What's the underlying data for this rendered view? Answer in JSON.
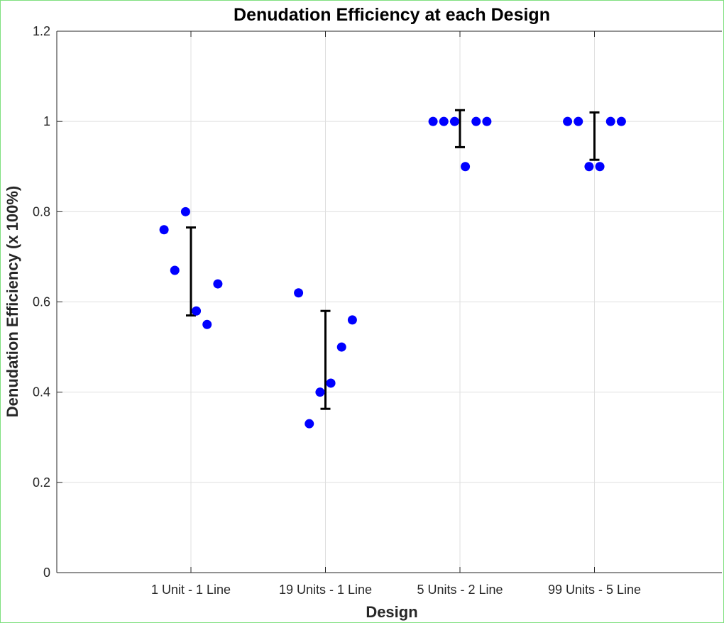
{
  "chart_data": {
    "type": "scatter",
    "title": "Denudation Efficiency at each Design",
    "xlabel": "Design",
    "ylabel": "Denudation Efficiency (x 100%)",
    "categories": [
      "1 Unit - 1 Line",
      "19 Units - 1 Line",
      "5 Units - 2 Line",
      "99 Units - 5 Line"
    ],
    "ylim": [
      0,
      1.2
    ],
    "yticks": [
      0,
      0.2,
      0.4,
      0.6,
      0.8,
      1,
      1.2
    ],
    "ytick_labels": [
      "0",
      "0.2",
      "0.4",
      "0.6",
      "0.8",
      "1",
      "1.2"
    ],
    "grid": true,
    "point_color": "#0000ff",
    "errorbar_color": "#000000",
    "groups": [
      {
        "category": "1 Unit - 1 Line",
        "points": [
          {
            "offset": -0.2,
            "y": 0.76
          },
          {
            "offset": -0.12,
            "y": 0.67
          },
          {
            "offset": -0.04,
            "y": 0.8
          },
          {
            "offset": 0.04,
            "y": 0.58
          },
          {
            "offset": 0.12,
            "y": 0.55
          },
          {
            "offset": 0.2,
            "y": 0.64
          }
        ],
        "errorbar": {
          "low": 0.57,
          "high": 0.765
        }
      },
      {
        "category": "19 Units - 1 Line",
        "points": [
          {
            "offset": -0.2,
            "y": 0.62
          },
          {
            "offset": -0.12,
            "y": 0.33
          },
          {
            "offset": -0.04,
            "y": 0.4
          },
          {
            "offset": 0.04,
            "y": 0.42
          },
          {
            "offset": 0.12,
            "y": 0.5
          },
          {
            "offset": 0.2,
            "y": 0.56
          }
        ],
        "errorbar": {
          "low": 0.363,
          "high": 0.58
        }
      },
      {
        "category": "5 Units - 2 Line",
        "points": [
          {
            "offset": -0.2,
            "y": 1.0
          },
          {
            "offset": -0.12,
            "y": 1.0
          },
          {
            "offset": -0.04,
            "y": 1.0
          },
          {
            "offset": 0.04,
            "y": 0.9
          },
          {
            "offset": 0.12,
            "y": 1.0
          },
          {
            "offset": 0.2,
            "y": 1.0
          }
        ],
        "errorbar": {
          "low": 0.943,
          "high": 1.025
        }
      },
      {
        "category": "99 Units - 5 Line",
        "points": [
          {
            "offset": -0.2,
            "y": 1.0
          },
          {
            "offset": -0.12,
            "y": 1.0
          },
          {
            "offset": -0.04,
            "y": 0.9
          },
          {
            "offset": 0.04,
            "y": 0.9
          },
          {
            "offset": 0.12,
            "y": 1.0
          },
          {
            "offset": 0.2,
            "y": 1.0
          }
        ],
        "errorbar": {
          "low": 0.915,
          "high": 1.02
        }
      }
    ]
  }
}
